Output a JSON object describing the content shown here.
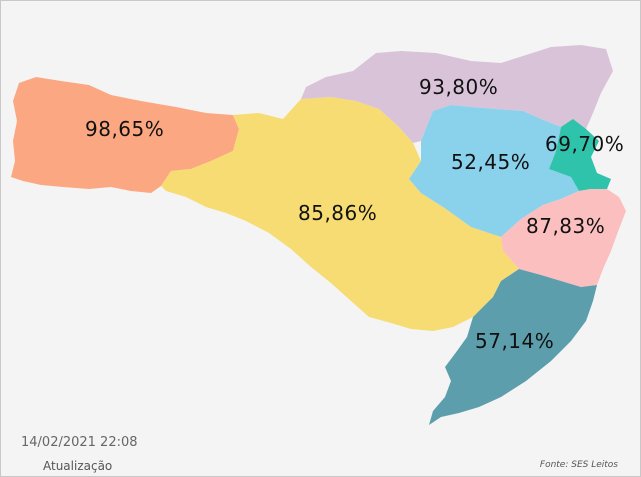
{
  "regions": [
    {
      "id": "extremo-oeste",
      "label": "98,65%",
      "color": "#fba882"
    },
    {
      "id": "oeste",
      "label": "85,86%",
      "color": "#f7dc73"
    },
    {
      "id": "planalto-norte",
      "label": "93,80%",
      "color": "#d9c3d9"
    },
    {
      "id": "vale-itajai",
      "label": "52,45%",
      "color": "#8ad2ec"
    },
    {
      "id": "foz-itajai",
      "label": "69,70%",
      "color": "#30c3ac"
    },
    {
      "id": "grande-florianopolis",
      "label": "87,83%",
      "color": "#fcbfc0"
    },
    {
      "id": "sul",
      "label": "57,14%",
      "color": "#5c9eac"
    }
  ],
  "footer": {
    "timestamp": "14/02/2021 22:08",
    "timestamp_caption": "Atualização",
    "source": "Fonte: SES Leitos"
  }
}
